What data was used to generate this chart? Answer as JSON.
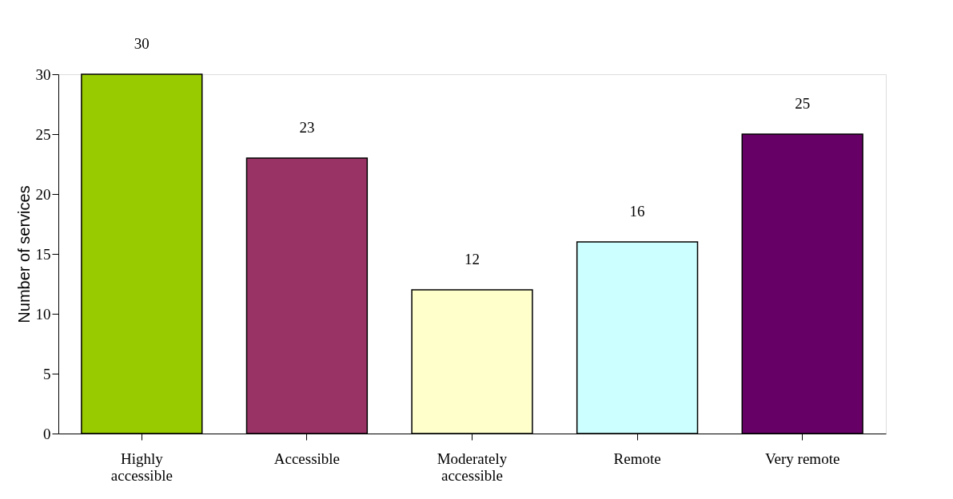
{
  "chart_data": {
    "type": "bar",
    "ylabel": "Number of services",
    "categories": [
      "Highly accessible",
      "Accessible",
      "Moderately accessible",
      "Remote",
      "Very remote"
    ],
    "values": [
      30,
      23,
      12,
      16,
      25
    ],
    "colors": [
      "#99cc00",
      "#993366",
      "#ffffcc",
      "#ccffff",
      "#660066"
    ],
    "ylim": [
      0,
      30
    ],
    "yticks": [
      0,
      5,
      10,
      15,
      20,
      25,
      30
    ],
    "grid": false,
    "data_labels": true
  }
}
